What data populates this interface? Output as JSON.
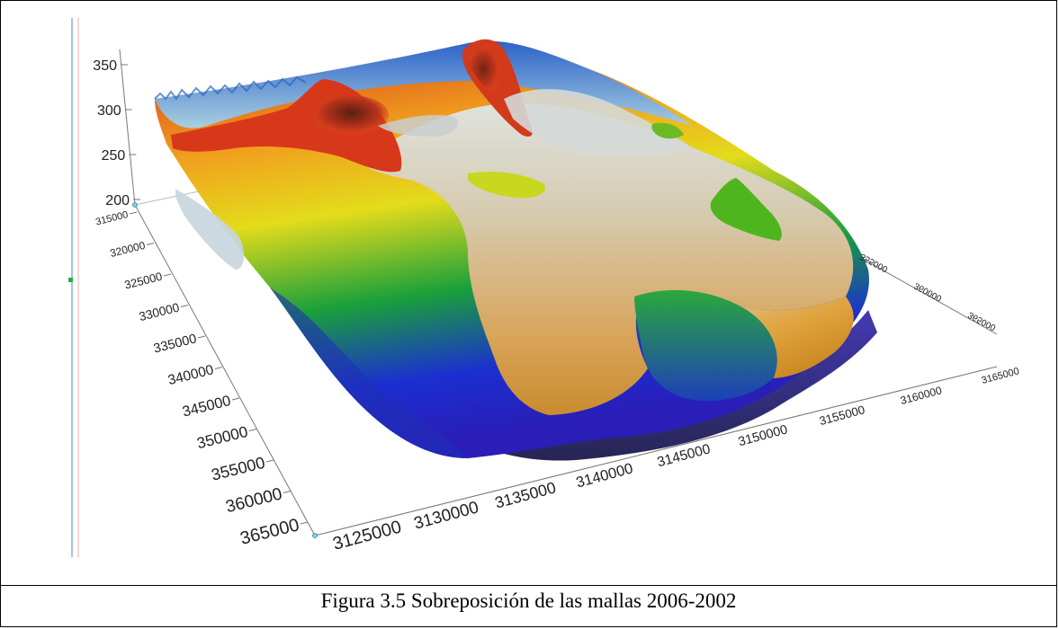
{
  "figure": {
    "caption": "Figura 3.5 Sobreposición de las mallas 2006-2002"
  },
  "chart_data": {
    "type": "surface",
    "z_axis": {
      "ticks": [
        "350",
        "300",
        "250",
        "200"
      ],
      "label": ""
    },
    "y_axis": {
      "ticks": [
        "315000",
        "320000",
        "325000",
        "330000",
        "335000",
        "340000",
        "345000",
        "350000",
        "355000",
        "360000",
        "365000"
      ]
    },
    "x_axis": {
      "ticks": [
        "3125000",
        "3130000",
        "3135000",
        "3140000",
        "3145000",
        "3150000",
        "3155000",
        "3160000",
        "3165000"
      ]
    },
    "right_axis": {
      "ticks": [
        "355000",
        "360000",
        "365000"
      ]
    },
    "colormap": [
      "#1b2fd0",
      "#1aa03a",
      "#e3dc1b",
      "#f0a21e",
      "#d9301a",
      "#d6cbb0",
      "#c6d8df"
    ]
  }
}
